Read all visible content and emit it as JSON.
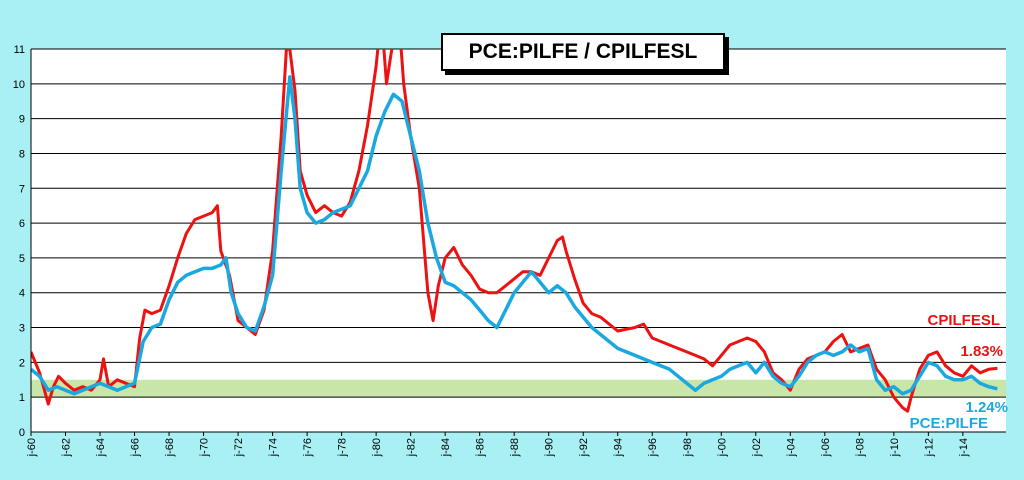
{
  "chart_data": {
    "type": "line",
    "title": "PCE:PILFE / CPILFESL",
    "xlabel": "",
    "ylabel": "",
    "xlim": [
      1960.0,
      2016.5
    ],
    "ylim": [
      0,
      11
    ],
    "yticks": [
      0,
      1,
      2,
      3,
      4,
      5,
      6,
      7,
      8,
      9,
      10,
      11
    ],
    "xtick_labels": [
      "j-60",
      "j-62",
      "j-64",
      "j-66",
      "j-68",
      "j-70",
      "j-72",
      "j-74",
      "j-76",
      "j-78",
      "j-80",
      "j-82",
      "j-84",
      "j-86",
      "j-88",
      "j-90",
      "j-92",
      "j-94",
      "j-96",
      "j-98",
      "j-00",
      "j-02",
      "j-04",
      "j-06",
      "j-08",
      "j-10",
      "j-12",
      "j-14"
    ],
    "xtick_years": [
      1960,
      1962,
      1964,
      1966,
      1968,
      1970,
      1972,
      1974,
      1976,
      1978,
      1980,
      1982,
      1984,
      1986,
      1988,
      1990,
      1992,
      1994,
      1996,
      1998,
      2000,
      2002,
      2004,
      2006,
      2008,
      2010,
      2012,
      2014
    ],
    "grid": "horizontal",
    "target_band": {
      "range": [
        1,
        1.5
      ],
      "color": "#c8e6a8"
    },
    "series": [
      {
        "name": "CPILFESL",
        "color": "#ee1111",
        "end_label": "1.83%",
        "x": [
          1960.0,
          1960.5,
          1961.0,
          1961.3,
          1961.6,
          1962.0,
          1962.5,
          1963.0,
          1963.5,
          1964.0,
          1964.2,
          1964.5,
          1965.0,
          1965.5,
          1966.0,
          1966.3,
          1966.6,
          1967.0,
          1967.5,
          1968.0,
          1968.5,
          1969.0,
          1969.5,
          1970.0,
          1970.5,
          1970.8,
          1971.0,
          1971.5,
          1972.0,
          1972.5,
          1973.0,
          1973.5,
          1974.0,
          1974.5,
          1974.8,
          1975.0,
          1975.3,
          1975.6,
          1976.0,
          1976.5,
          1977.0,
          1977.5,
          1978.0,
          1978.5,
          1979.0,
          1979.5,
          1980.0,
          1980.3,
          1980.6,
          1981.0,
          1981.3,
          1981.6,
          1982.0,
          1982.5,
          1983.0,
          1983.3,
          1983.6,
          1984.0,
          1984.5,
          1985.0,
          1985.5,
          1986.0,
          1986.5,
          1987.0,
          1987.5,
          1988.0,
          1988.5,
          1989.0,
          1989.5,
          1990.0,
          1990.5,
          1990.8,
          1991.0,
          1991.5,
          1992.0,
          1992.5,
          1993.0,
          1994.0,
          1995.0,
          1995.5,
          1996.0,
          1996.5,
          1997.0,
          1998.0,
          1999.0,
          1999.5,
          2000.0,
          2000.5,
          2001.0,
          2001.5,
          2002.0,
          2002.5,
          2003.0,
          2003.5,
          2004.0,
          2004.5,
          2005.0,
          2005.5,
          2006.0,
          2006.5,
          2007.0,
          2007.5,
          2008.0,
          2008.5,
          2009.0,
          2009.5,
          2010.0,
          2010.5,
          2010.8,
          2011.0,
          2011.5,
          2012.0,
          2012.5,
          2013.0,
          2013.5,
          2014.0,
          2014.5,
          2015.0,
          2015.5,
          2016.0
        ],
        "y": [
          2.3,
          1.7,
          0.8,
          1.3,
          1.6,
          1.4,
          1.2,
          1.3,
          1.2,
          1.5,
          2.1,
          1.3,
          1.5,
          1.4,
          1.3,
          2.7,
          3.5,
          3.4,
          3.5,
          4.2,
          5.0,
          5.7,
          6.1,
          6.2,
          6.3,
          6.5,
          5.2,
          4.5,
          3.2,
          3.0,
          2.8,
          3.5,
          5.2,
          8.5,
          11.0,
          11.0,
          9.8,
          7.5,
          6.8,
          6.3,
          6.5,
          6.3,
          6.2,
          6.6,
          7.5,
          8.8,
          10.5,
          12.0,
          10.0,
          11.3,
          12.0,
          10.0,
          8.5,
          7.0,
          4.0,
          3.2,
          4.2,
          5.0,
          5.3,
          4.8,
          4.5,
          4.1,
          4.0,
          4.0,
          4.2,
          4.4,
          4.6,
          4.6,
          4.5,
          5.0,
          5.5,
          5.6,
          5.2,
          4.4,
          3.7,
          3.4,
          3.3,
          2.9,
          3.0,
          3.1,
          2.7,
          2.6,
          2.5,
          2.3,
          2.1,
          1.9,
          2.2,
          2.5,
          2.6,
          2.7,
          2.6,
          2.3,
          1.7,
          1.5,
          1.2,
          1.8,
          2.1,
          2.2,
          2.3,
          2.6,
          2.8,
          2.3,
          2.4,
          2.5,
          1.8,
          1.5,
          1.0,
          0.7,
          0.6,
          1.0,
          1.8,
          2.2,
          2.3,
          1.9,
          1.7,
          1.6,
          1.9,
          1.7,
          1.8,
          1.83
        ]
      },
      {
        "name": "PCE:PILFE",
        "color": "#1aa8e0",
        "end_label": "1.24%",
        "x": [
          1960.0,
          1960.5,
          1961.0,
          1961.5,
          1962.0,
          1962.5,
          1963.0,
          1963.5,
          1964.0,
          1964.5,
          1965.0,
          1965.5,
          1966.0,
          1966.5,
          1967.0,
          1967.5,
          1968.0,
          1968.5,
          1969.0,
          1969.5,
          1970.0,
          1970.5,
          1971.0,
          1971.3,
          1971.6,
          1972.0,
          1972.5,
          1973.0,
          1973.5,
          1974.0,
          1974.5,
          1975.0,
          1975.3,
          1975.6,
          1976.0,
          1976.5,
          1977.0,
          1977.5,
          1978.0,
          1978.5,
          1979.0,
          1979.5,
          1980.0,
          1980.5,
          1981.0,
          1981.5,
          1982.0,
          1982.5,
          1983.0,
          1983.5,
          1984.0,
          1984.5,
          1985.0,
          1985.5,
          1986.0,
          1986.5,
          1987.0,
          1987.5,
          1988.0,
          1988.5,
          1989.0,
          1989.5,
          1990.0,
          1990.5,
          1991.0,
          1991.5,
          1992.0,
          1992.5,
          1993.0,
          1994.0,
          1995.0,
          1996.0,
          1997.0,
          1998.0,
          1998.5,
          1999.0,
          1999.5,
          2000.0,
          2000.5,
          2001.0,
          2001.5,
          2002.0,
          2002.5,
          2003.0,
          2003.5,
          2004.0,
          2004.5,
          2005.0,
          2005.5,
          2006.0,
          2006.5,
          2007.0,
          2007.5,
          2008.0,
          2008.5,
          2009.0,
          2009.5,
          2010.0,
          2010.5,
          2011.0,
          2011.5,
          2012.0,
          2012.5,
          2013.0,
          2013.5,
          2014.0,
          2014.5,
          2015.0,
          2015.5,
          2016.0
        ],
        "y": [
          1.8,
          1.6,
          1.2,
          1.3,
          1.2,
          1.1,
          1.2,
          1.3,
          1.4,
          1.3,
          1.2,
          1.3,
          1.4,
          2.6,
          3.0,
          3.1,
          3.8,
          4.3,
          4.5,
          4.6,
          4.7,
          4.7,
          4.8,
          5.0,
          4.0,
          3.4,
          3.0,
          2.9,
          3.6,
          4.5,
          7.5,
          10.2,
          9.0,
          7.0,
          6.3,
          6.0,
          6.1,
          6.3,
          6.4,
          6.5,
          7.0,
          7.5,
          8.5,
          9.2,
          9.7,
          9.5,
          8.5,
          7.5,
          6.0,
          5.0,
          4.3,
          4.2,
          4.0,
          3.8,
          3.5,
          3.2,
          3.0,
          3.5,
          4.0,
          4.3,
          4.6,
          4.3,
          4.0,
          4.2,
          4.0,
          3.6,
          3.3,
          3.0,
          2.8,
          2.4,
          2.2,
          2.0,
          1.8,
          1.4,
          1.2,
          1.4,
          1.5,
          1.6,
          1.8,
          1.9,
          2.0,
          1.7,
          2.0,
          1.6,
          1.4,
          1.3,
          1.6,
          2.0,
          2.2,
          2.3,
          2.2,
          2.3,
          2.5,
          2.3,
          2.4,
          1.5,
          1.2,
          1.3,
          1.1,
          1.2,
          1.6,
          2.0,
          1.9,
          1.6,
          1.5,
          1.5,
          1.6,
          1.4,
          1.3,
          1.24
        ]
      }
    ]
  }
}
